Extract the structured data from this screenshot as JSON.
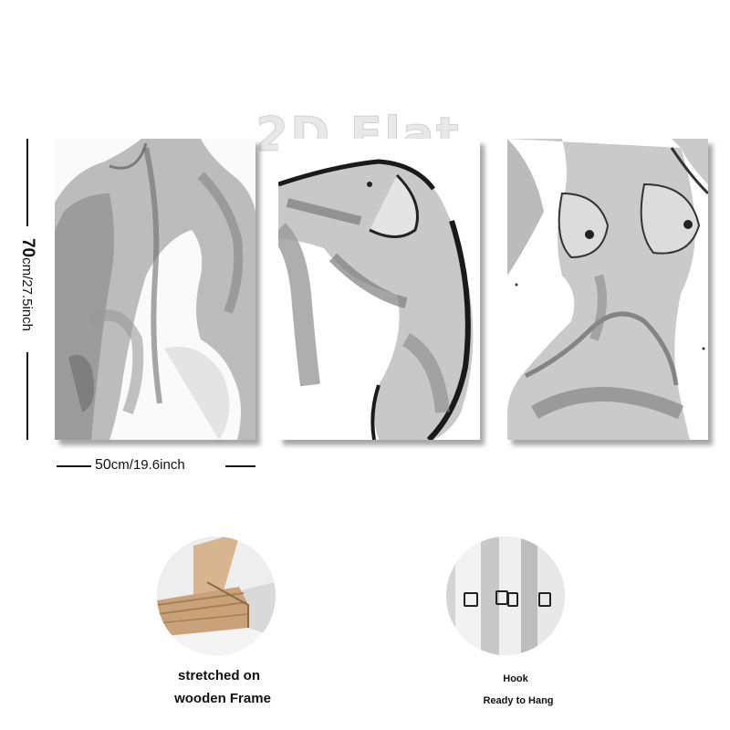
{
  "watermark": "2D Flat",
  "dimensions": {
    "height_value": "70",
    "height_unit": "cm/27.5inch",
    "width_value": "50",
    "width_unit": "cm/19.6inch"
  },
  "features": {
    "frame": {
      "line1": "stretched on",
      "line2": "wooden Frame"
    },
    "hook": {
      "line1": "Hook",
      "line2": "Ready to Hang"
    }
  }
}
